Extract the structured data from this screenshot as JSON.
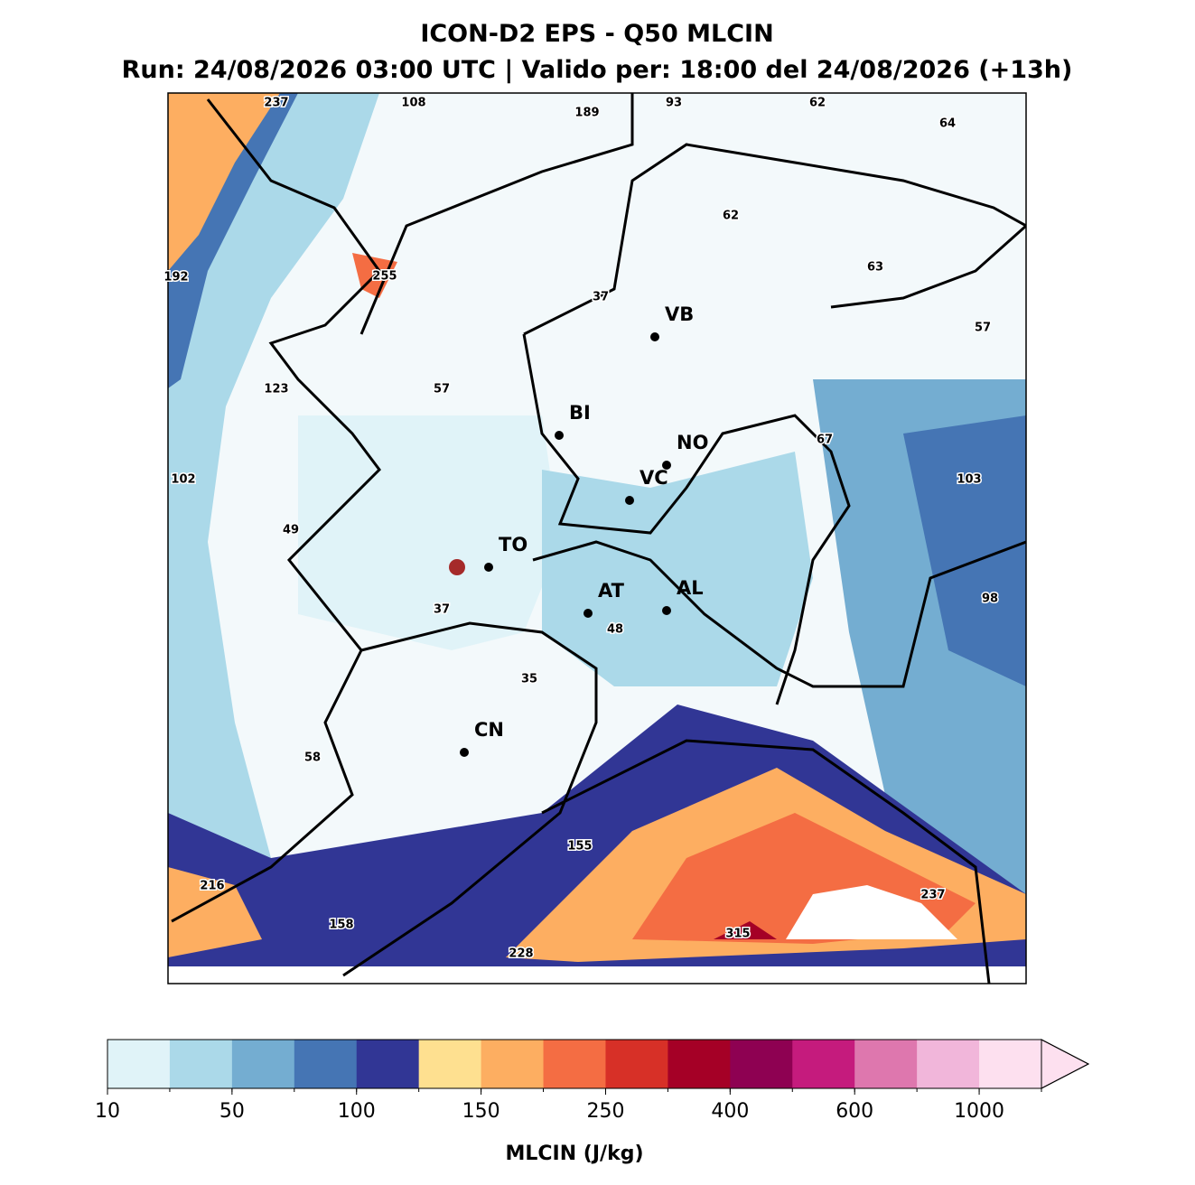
{
  "header": {
    "title": "ICON-D2 EPS - Q50 MLCIN",
    "subtitle": "Run: 24/08/2026 03:00 UTC | Valido per: 18:00 del 24/08/2026 (+13h)"
  },
  "map": {
    "cities": [
      "VB",
      "BI",
      "NO",
      "VC",
      "TO",
      "AT",
      "AL",
      "CN"
    ],
    "value_labels": [
      "237",
      "108",
      "189",
      "93",
      "62",
      "64",
      "62",
      "192",
      "255",
      "63",
      "37",
      "57",
      "123",
      "57",
      "67",
      "103",
      "102",
      "49",
      "98",
      "37",
      "48",
      "35",
      "58",
      "155",
      "216",
      "237",
      "158",
      "315",
      "228"
    ]
  },
  "colorbar": {
    "colors": [
      "#e0f3f8",
      "#abd9e9",
      "#74add1",
      "#4575b4",
      "#313695",
      "#fee090",
      "#fdae61",
      "#f46d43",
      "#d73027",
      "#a50026",
      "#8e0152",
      "#c51b7d",
      "#de77ae",
      "#f1b6da",
      "#fde0ef"
    ],
    "ticks": [
      10,
      50,
      100,
      150,
      250,
      400,
      600,
      1000
    ],
    "label": "MLCIN (J/kg)"
  }
}
